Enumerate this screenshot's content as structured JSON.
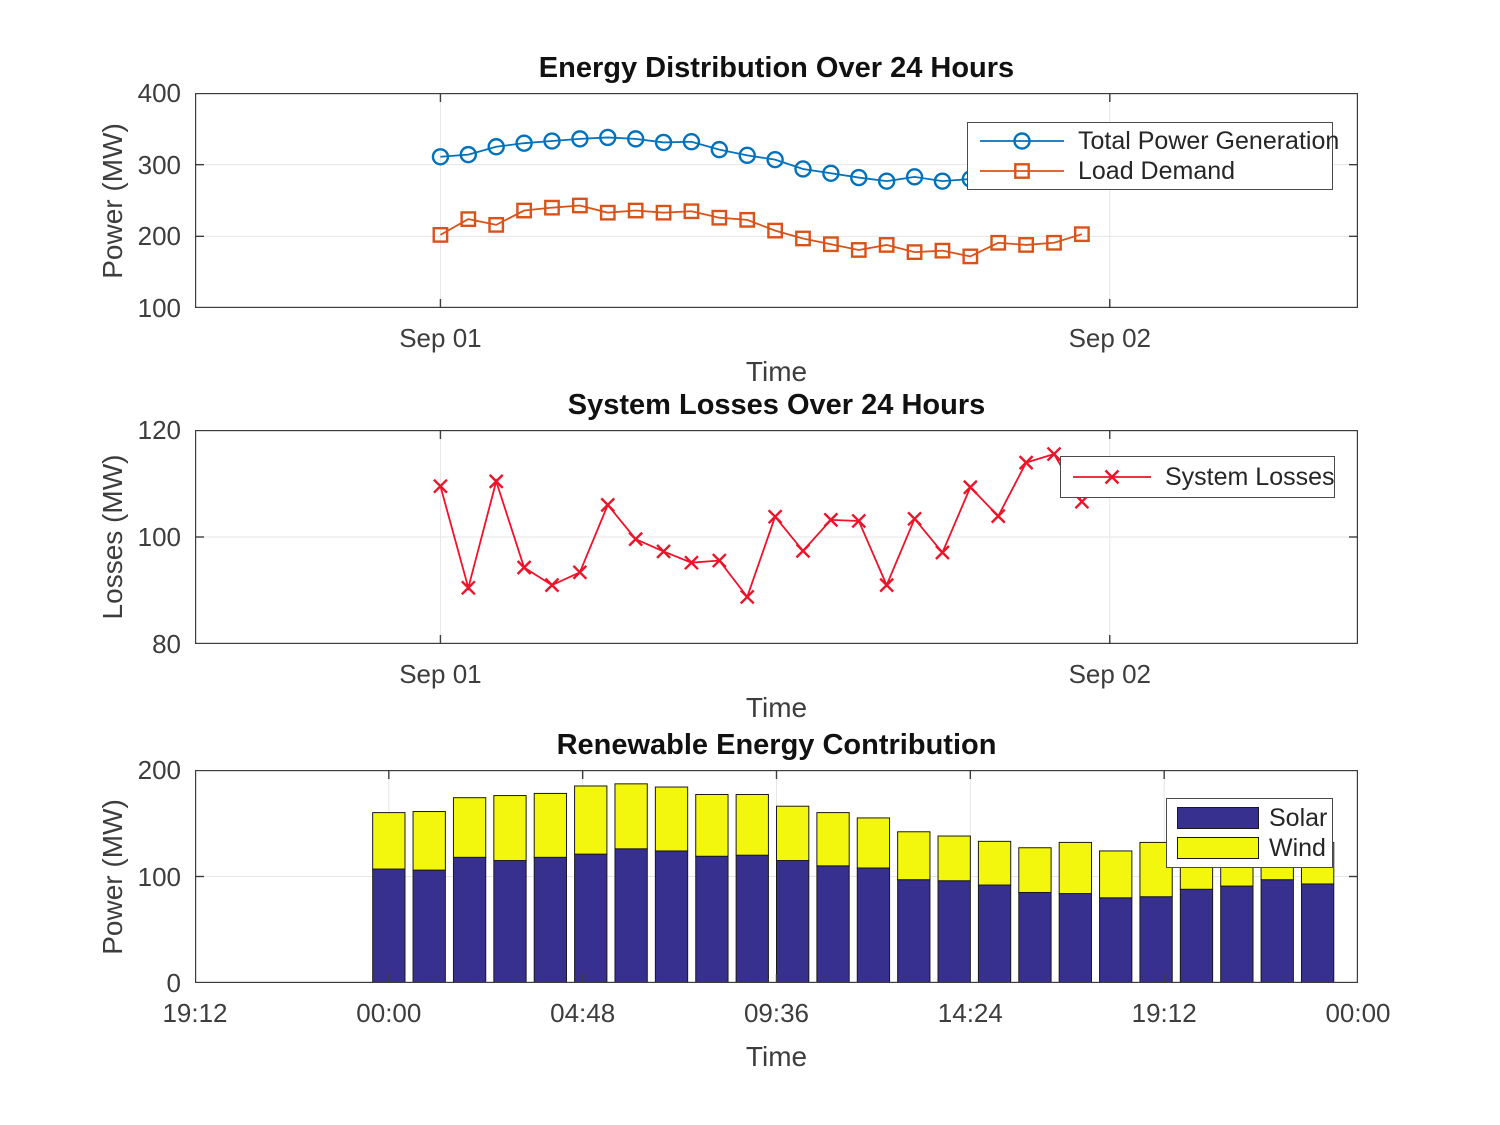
{
  "chart_data": [
    {
      "type": "line",
      "title": "Energy Distribution Over 24 Hours",
      "xlabel": "Time",
      "ylabel": "Power (MW)",
      "xlim": [
        -8.8,
        32.9
      ],
      "ylim": [
        100,
        400
      ],
      "grid": true,
      "legend_position": "upper-right",
      "xticks": [
        {
          "v": 0,
          "label": "Sep 01"
        },
        {
          "v": 24,
          "label": "Sep 02"
        }
      ],
      "yticks": [
        {
          "v": 100,
          "label": "100"
        },
        {
          "v": 200,
          "label": "200"
        },
        {
          "v": 300,
          "label": "300"
        },
        {
          "v": 400,
          "label": "400"
        }
      ],
      "x_hours": [
        0,
        1,
        2,
        3,
        4,
        5,
        6,
        7,
        8,
        9,
        10,
        11,
        12,
        13,
        14,
        15,
        16,
        17,
        18,
        19,
        20,
        21,
        22,
        23
      ],
      "series": [
        {
          "name": "Total Power Generation",
          "color": "#0072BD",
          "marker": "circle",
          "values": [
            311,
            314,
            325,
            330,
            333,
            336,
            338,
            336,
            331,
            332,
            321,
            313,
            307,
            294,
            288,
            282,
            277,
            283,
            277,
            280,
            284,
            288,
            292,
            296
          ]
        },
        {
          "name": "Load Demand",
          "color": "#D95319",
          "marker": "square",
          "values": [
            202,
            224,
            216,
            236,
            240,
            243,
            233,
            236,
            233,
            235,
            226,
            223,
            208,
            197,
            189,
            181,
            188,
            178,
            180,
            172,
            191,
            188,
            191,
            203
          ]
        }
      ]
    },
    {
      "type": "line",
      "title": "System Losses Over 24 Hours",
      "xlabel": "Time",
      "ylabel": "Losses (MW)",
      "xlim": [
        -8.8,
        32.9
      ],
      "ylim": [
        80,
        120
      ],
      "grid": true,
      "legend_position": "upper-right",
      "xticks": [
        {
          "v": 0,
          "label": "Sep 01"
        },
        {
          "v": 24,
          "label": "Sep 02"
        }
      ],
      "yticks": [
        {
          "v": 80,
          "label": "80"
        },
        {
          "v": 100,
          "label": "100"
        },
        {
          "v": 120,
          "label": "120"
        }
      ],
      "x_hours": [
        0,
        1,
        2,
        3,
        4,
        5,
        6,
        7,
        8,
        9,
        10,
        11,
        12,
        13,
        14,
        15,
        16,
        17,
        18,
        19,
        20,
        21,
        22,
        23
      ],
      "series": [
        {
          "name": "System Losses",
          "color": "#EF1228",
          "marker": "x",
          "values": [
            109.5,
            90.5,
            110.4,
            94.3,
            91.0,
            93.4,
            106.0,
            99.6,
            97.3,
            95.2,
            95.6,
            88.8,
            103.8,
            97.4,
            103.2,
            103.0,
            91.0,
            103.4,
            97.1,
            109.3,
            103.9,
            113.9,
            115.5,
            106.6
          ]
        }
      ]
    },
    {
      "type": "bar-stacked",
      "title": "Renewable Energy Contribution",
      "xlabel": "Time",
      "ylabel": "Power (MW)",
      "xlim": [
        -4.8,
        24
      ],
      "ylim": [
        0,
        200
      ],
      "grid": true,
      "bar_width": 0.8,
      "legend_position": "upper-right",
      "xticks": [
        {
          "v": -4.8,
          "label": "19:12"
        },
        {
          "v": 0,
          "label": "00:00"
        },
        {
          "v": 4.8,
          "label": "04:48"
        },
        {
          "v": 9.6,
          "label": "09:36"
        },
        {
          "v": 14.4,
          "label": "14:24"
        },
        {
          "v": 19.2,
          "label": "19:12"
        },
        {
          "v": 24,
          "label": "00:00"
        }
      ],
      "yticks": [
        {
          "v": 0,
          "label": "0"
        },
        {
          "v": 100,
          "label": "100"
        },
        {
          "v": 200,
          "label": "200"
        }
      ],
      "x_hours": [
        0,
        1,
        2,
        3,
        4,
        5,
        6,
        7,
        8,
        9,
        10,
        11,
        12,
        13,
        14,
        15,
        16,
        17,
        18,
        19,
        20,
        21,
        22,
        23
      ],
      "series": [
        {
          "name": "Solar",
          "color": "#38308F",
          "values": [
            107,
            106,
            118,
            115,
            118,
            121,
            126,
            124,
            119,
            120,
            115,
            110,
            108,
            97,
            96,
            92,
            85,
            84,
            80,
            81,
            88,
            91,
            97,
            93
          ]
        },
        {
          "name": "Wind",
          "color": "#F3F70E",
          "values": [
            53,
            55,
            56,
            61,
            60,
            64,
            61,
            60,
            58,
            57,
            51,
            50,
            47,
            45,
            42,
            41,
            42,
            48,
            44,
            51,
            42,
            36,
            28,
            39
          ]
        }
      ]
    }
  ]
}
